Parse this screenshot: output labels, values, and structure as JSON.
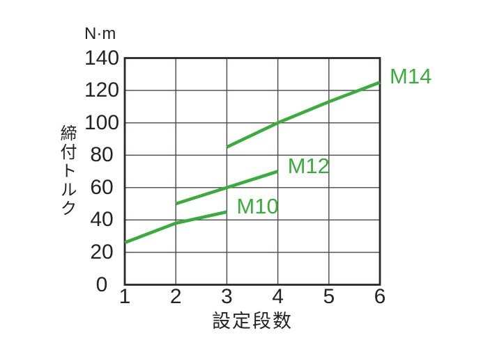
{
  "chart_data": {
    "type": "line",
    "title": "",
    "unit_label": "N·m",
    "ylabel": "締付トルク",
    "xlabel": "設定段数",
    "xlim": [
      1,
      6
    ],
    "ylim": [
      0,
      140
    ],
    "xticks": [
      1,
      2,
      3,
      4,
      5,
      6
    ],
    "yticks": [
      0,
      20,
      40,
      60,
      80,
      100,
      120,
      140
    ],
    "grid": true,
    "legend_position": "end-of-line labels",
    "line_color": "#3aac3a",
    "grid_color": "#4c4648",
    "border_color": "#2b2627",
    "text_color": "#272122",
    "series": [
      {
        "name": "M10",
        "points": [
          [
            1,
            26
          ],
          [
            2,
            38
          ],
          [
            3,
            45
          ]
        ]
      },
      {
        "name": "M12",
        "points": [
          [
            2,
            50
          ],
          [
            3,
            60
          ],
          [
            4,
            70
          ]
        ]
      },
      {
        "name": "M14",
        "points": [
          [
            3,
            85
          ],
          [
            4,
            100
          ],
          [
            5,
            113
          ],
          [
            6,
            125
          ]
        ]
      }
    ]
  }
}
